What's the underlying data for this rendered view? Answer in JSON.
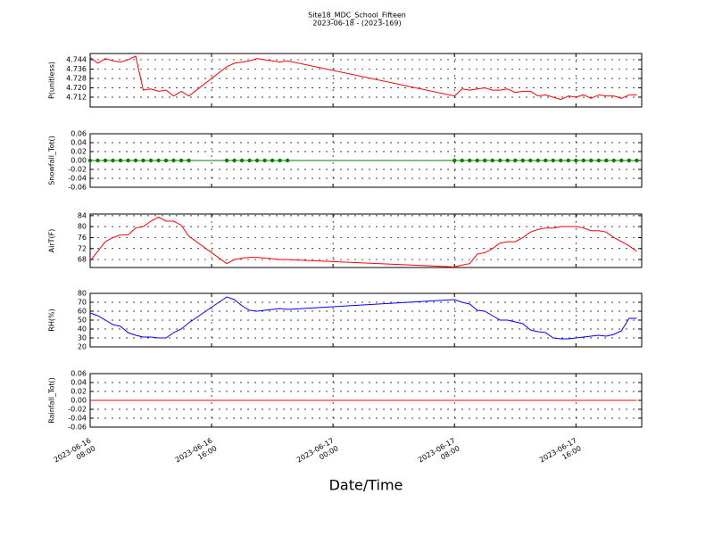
{
  "chart_data": [
    {
      "type": "line",
      "title": "Site18_MDC_School_Fifteen",
      "subtitle": "2023-06-18 - (2023-169)",
      "ylabel": "P(unitless)",
      "x": [
        "2023-06-16 08:00",
        "2023-06-16 08:30",
        "2023-06-16 09:00",
        "2023-06-16 09:30",
        "2023-06-16 10:00",
        "2023-06-16 10:30",
        "2023-06-16 11:00",
        "2023-06-16 11:30",
        "2023-06-16 12:00",
        "2023-06-16 12:30",
        "2023-06-16 13:00",
        "2023-06-16 13:30",
        "2023-06-16 14:00",
        "2023-06-16 14:30",
        "2023-06-16 17:00",
        "2023-06-16 17:30",
        "2023-06-16 18:00",
        "2023-06-16 18:30",
        "2023-06-16 19:00",
        "2023-06-16 19:30",
        "2023-06-16 20:00",
        "2023-06-16 20:30",
        "2023-06-16 21:00",
        "2023-06-17 08:00",
        "2023-06-17 08:30",
        "2023-06-17 09:00",
        "2023-06-17 09:30",
        "2023-06-17 10:00",
        "2023-06-17 10:30",
        "2023-06-17 11:00",
        "2023-06-17 11:30",
        "2023-06-17 12:00",
        "2023-06-17 12:30",
        "2023-06-17 13:00",
        "2023-06-17 13:30",
        "2023-06-17 14:00",
        "2023-06-17 14:30",
        "2023-06-17 15:00",
        "2023-06-17 15:30",
        "2023-06-17 16:00",
        "2023-06-17 16:30",
        "2023-06-17 17:00",
        "2023-06-17 17:30",
        "2023-06-17 18:00",
        "2023-06-17 18:30",
        "2023-06-17 19:00",
        "2023-06-17 19:30",
        "2023-06-17 20:00"
      ],
      "series": [
        {
          "color": "#ff0000",
          "values": [
            4.746,
            4.741,
            4.745,
            4.743,
            4.742,
            4.744,
            4.747,
            4.718,
            4.719,
            4.717,
            4.718,
            4.713,
            4.717,
            4.713,
            4.738,
            4.741,
            4.742,
            4.743,
            4.745,
            4.744,
            4.743,
            4.742,
            4.743,
            4.713,
            4.719,
            4.718,
            4.719,
            4.72,
            4.718,
            4.718,
            4.719,
            4.716,
            4.717,
            4.717,
            4.713,
            4.714,
            4.712,
            4.71,
            4.713,
            4.712,
            4.714,
            4.711,
            4.714,
            4.713,
            4.713,
            4.711,
            4.714,
            4.714
          ]
        }
      ],
      "ylim": [
        4.7036,
        4.7493
      ],
      "yticks": [
        4.712,
        {
          "value": 4.72,
          "label": "4.720"
        },
        4.728,
        4.736,
        4.744
      ],
      "grid": true
    },
    {
      "type": "line",
      "ylabel": "Snowfall_Tot()",
      "x": [
        "2023-06-16 08:00",
        "2023-06-16 08:30",
        "2023-06-16 09:00",
        "2023-06-16 09:30",
        "2023-06-16 10:00",
        "2023-06-16 10:30",
        "2023-06-16 11:00",
        "2023-06-16 11:30",
        "2023-06-16 12:00",
        "2023-06-16 12:30",
        "2023-06-16 13:00",
        "2023-06-16 13:30",
        "2023-06-16 14:00",
        "2023-06-16 14:30",
        "2023-06-16 17:00",
        "2023-06-16 17:30",
        "2023-06-16 18:00",
        "2023-06-16 18:30",
        "2023-06-16 19:00",
        "2023-06-16 19:30",
        "2023-06-16 20:00",
        "2023-06-16 20:30",
        "2023-06-16 21:00",
        "2023-06-17 08:00",
        "2023-06-17 08:30",
        "2023-06-17 09:00",
        "2023-06-17 09:30",
        "2023-06-17 10:00",
        "2023-06-17 10:30",
        "2023-06-17 11:00",
        "2023-06-17 11:30",
        "2023-06-17 12:00",
        "2023-06-17 12:30",
        "2023-06-17 13:00",
        "2023-06-17 13:30",
        "2023-06-17 14:00",
        "2023-06-17 14:30",
        "2023-06-17 15:00",
        "2023-06-17 15:30",
        "2023-06-17 16:00",
        "2023-06-17 16:30",
        "2023-06-17 17:00",
        "2023-06-17 17:30",
        "2023-06-17 18:00",
        "2023-06-17 18:30",
        "2023-06-17 19:00",
        "2023-06-17 19:30",
        "2023-06-17 20:00"
      ],
      "series": [
        {
          "color": "#008000",
          "markers": true,
          "values": [
            0,
            0,
            0,
            0,
            0,
            0,
            0,
            0,
            0,
            0,
            0,
            0,
            0,
            0,
            0,
            0,
            0,
            0,
            0,
            0,
            0,
            0,
            0,
            0,
            0,
            0,
            0,
            0,
            0,
            0,
            0,
            0,
            0,
            0,
            0,
            0,
            0,
            0,
            0,
            0,
            0,
            0,
            0,
            0,
            0,
            0,
            0,
            0
          ]
        }
      ],
      "ylim": [
        -0.06,
        0.06
      ],
      "yticks": [
        -0.06,
        -0.04,
        -0.02,
        {
          "value": 0,
          "label": "0.00"
        },
        0.02,
        0.04,
        0.06
      ],
      "grid": true
    },
    {
      "type": "line",
      "ylabel": "AirT(F)",
      "x": [
        "2023-06-16 08:00",
        "2023-06-16 08:30",
        "2023-06-16 09:00",
        "2023-06-16 09:30",
        "2023-06-16 10:00",
        "2023-06-16 10:30",
        "2023-06-16 11:00",
        "2023-06-16 11:30",
        "2023-06-16 12:00",
        "2023-06-16 12:30",
        "2023-06-16 13:00",
        "2023-06-16 13:30",
        "2023-06-16 14:00",
        "2023-06-16 14:30",
        "2023-06-16 17:00",
        "2023-06-16 17:30",
        "2023-06-16 18:00",
        "2023-06-16 18:30",
        "2023-06-16 19:00",
        "2023-06-16 19:30",
        "2023-06-16 20:00",
        "2023-06-16 20:30",
        "2023-06-16 21:00",
        "2023-06-17 08:00",
        "2023-06-17 08:30",
        "2023-06-17 09:00",
        "2023-06-17 09:30",
        "2023-06-17 10:00",
        "2023-06-17 10:30",
        "2023-06-17 11:00",
        "2023-06-17 11:30",
        "2023-06-17 12:00",
        "2023-06-17 12:30",
        "2023-06-17 13:00",
        "2023-06-17 13:30",
        "2023-06-17 14:00",
        "2023-06-17 14:30",
        "2023-06-17 15:00",
        "2023-06-17 15:30",
        "2023-06-17 16:00",
        "2023-06-17 16:30",
        "2023-06-17 17:00",
        "2023-06-17 17:30",
        "2023-06-17 18:00",
        "2023-06-17 18:30",
        "2023-06-17 19:00",
        "2023-06-17 19:30",
        "2023-06-17 20:00"
      ],
      "series": [
        {
          "color": "#ff0000",
          "values": [
            67.5,
            71,
            74.5,
            76,
            77,
            77,
            79.5,
            80,
            82,
            83.5,
            82,
            82,
            80.5,
            76.5,
            66.5,
            68,
            68.5,
            68.8,
            68.8,
            68.5,
            68.3,
            68,
            68,
            65.3,
            66,
            66.5,
            70,
            70.5,
            72,
            74,
            74.5,
            74.5,
            76,
            78,
            79,
            79.5,
            79.5,
            80,
            80,
            80,
            79.5,
            78.5,
            78.5,
            78,
            76,
            74.5,
            73,
            71
          ]
        }
      ],
      "ylim": [
        65.1,
        84.6
      ],
      "yticks": [
        68,
        72,
        76,
        80,
        84
      ],
      "grid": true
    },
    {
      "type": "line",
      "ylabel": "RH(%)",
      "x": [
        "2023-06-16 08:00",
        "2023-06-16 08:30",
        "2023-06-16 09:00",
        "2023-06-16 09:30",
        "2023-06-16 10:00",
        "2023-06-16 10:30",
        "2023-06-16 11:00",
        "2023-06-16 11:30",
        "2023-06-16 12:00",
        "2023-06-16 12:30",
        "2023-06-16 13:00",
        "2023-06-16 13:30",
        "2023-06-16 14:00",
        "2023-06-16 14:30",
        "2023-06-16 17:00",
        "2023-06-16 17:30",
        "2023-06-16 18:00",
        "2023-06-16 18:30",
        "2023-06-16 19:00",
        "2023-06-16 19:30",
        "2023-06-16 20:00",
        "2023-06-16 20:30",
        "2023-06-16 21:00",
        "2023-06-17 08:00",
        "2023-06-17 08:30",
        "2023-06-17 09:00",
        "2023-06-17 09:30",
        "2023-06-17 10:00",
        "2023-06-17 10:30",
        "2023-06-17 11:00",
        "2023-06-17 11:30",
        "2023-06-17 12:00",
        "2023-06-17 12:30",
        "2023-06-17 13:00",
        "2023-06-17 13:30",
        "2023-06-17 14:00",
        "2023-06-17 14:30",
        "2023-06-17 15:00",
        "2023-06-17 15:30",
        "2023-06-17 16:00",
        "2023-06-17 16:30",
        "2023-06-17 17:00",
        "2023-06-17 17:30",
        "2023-06-17 18:00",
        "2023-06-17 18:30",
        "2023-06-17 19:00",
        "2023-06-17 19:30",
        "2023-06-17 20:00"
      ],
      "series": [
        {
          "color": "#0000ff",
          "values": [
            58,
            55,
            50,
            45,
            43,
            36,
            33,
            31,
            31,
            30,
            30,
            36,
            40,
            47,
            76,
            73,
            66,
            61,
            60,
            61,
            62,
            63,
            62,
            73,
            70,
            68,
            61,
            60,
            55,
            50,
            50,
            48,
            46,
            39,
            37,
            36,
            30,
            29,
            29,
            30,
            31,
            32,
            33,
            32,
            34,
            38,
            52,
            52
          ]
        }
      ],
      "ylim": [
        20,
        80
      ],
      "yticks": [
        20,
        30,
        40,
        50,
        60,
        70,
        80
      ],
      "grid": true
    },
    {
      "type": "line",
      "ylabel": "Rainfall_Tot()",
      "xlabel": "Date/Time",
      "x": [
        "2023-06-16 08:00",
        "2023-06-16 08:30",
        "2023-06-16 09:00",
        "2023-06-16 09:30",
        "2023-06-16 10:00",
        "2023-06-16 10:30",
        "2023-06-16 11:00",
        "2023-06-16 11:30",
        "2023-06-16 12:00",
        "2023-06-16 12:30",
        "2023-06-16 13:00",
        "2023-06-16 13:30",
        "2023-06-16 14:00",
        "2023-06-16 14:30",
        "2023-06-16 17:00",
        "2023-06-16 17:30",
        "2023-06-16 18:00",
        "2023-06-16 18:30",
        "2023-06-16 19:00",
        "2023-06-16 19:30",
        "2023-06-16 20:00",
        "2023-06-16 20:30",
        "2023-06-16 21:00",
        "2023-06-17 08:00",
        "2023-06-17 08:30",
        "2023-06-17 09:00",
        "2023-06-17 09:30",
        "2023-06-17 10:00",
        "2023-06-17 10:30",
        "2023-06-17 11:00",
        "2023-06-17 11:30",
        "2023-06-17 12:00",
        "2023-06-17 12:30",
        "2023-06-17 13:00",
        "2023-06-17 13:30",
        "2023-06-17 14:00",
        "2023-06-17 14:30",
        "2023-06-17 15:00",
        "2023-06-17 15:30",
        "2023-06-17 16:00",
        "2023-06-17 16:30",
        "2023-06-17 17:00",
        "2023-06-17 17:30",
        "2023-06-17 18:00",
        "2023-06-17 18:30",
        "2023-06-17 19:00",
        "2023-06-17 19:30",
        "2023-06-17 20:00"
      ],
      "series": [
        {
          "color": "#ff0000",
          "values": [
            0,
            0,
            0,
            0,
            0,
            0,
            0,
            0,
            0,
            0,
            0,
            0,
            0,
            0,
            0,
            0,
            0,
            0,
            0,
            0,
            0,
            0,
            0,
            0,
            0,
            0,
            0,
            0,
            0,
            0,
            0,
            0,
            0,
            0,
            0,
            0,
            0,
            0,
            0,
            0,
            0,
            0,
            0,
            0,
            0,
            0,
            0,
            0
          ]
        }
      ],
      "ylim": [
        -0.06,
        0.06
      ],
      "yticks": [
        -0.06,
        -0.04,
        -0.02,
        {
          "value": 0,
          "label": "0.00"
        },
        0.02,
        0.04,
        0.06
      ],
      "grid": true,
      "xlim": [
        "2023-06-16 08:00",
        "2023-06-17 20:20"
      ],
      "xticks": [
        {
          "value": "2023-06-16 08:00",
          "label": "2023-06-16\n08:00"
        },
        {
          "value": "2023-06-16 16:00",
          "label": "2023-06-16\n16:00"
        },
        {
          "value": "2023-06-17 00:00",
          "label": "2023-06-17\n00:00"
        },
        {
          "value": "2023-06-17 08:00",
          "label": "2023-06-17\n08:00"
        },
        {
          "value": "2023-06-17 16:00",
          "label": "2023-06-17\n16:00"
        }
      ]
    }
  ]
}
